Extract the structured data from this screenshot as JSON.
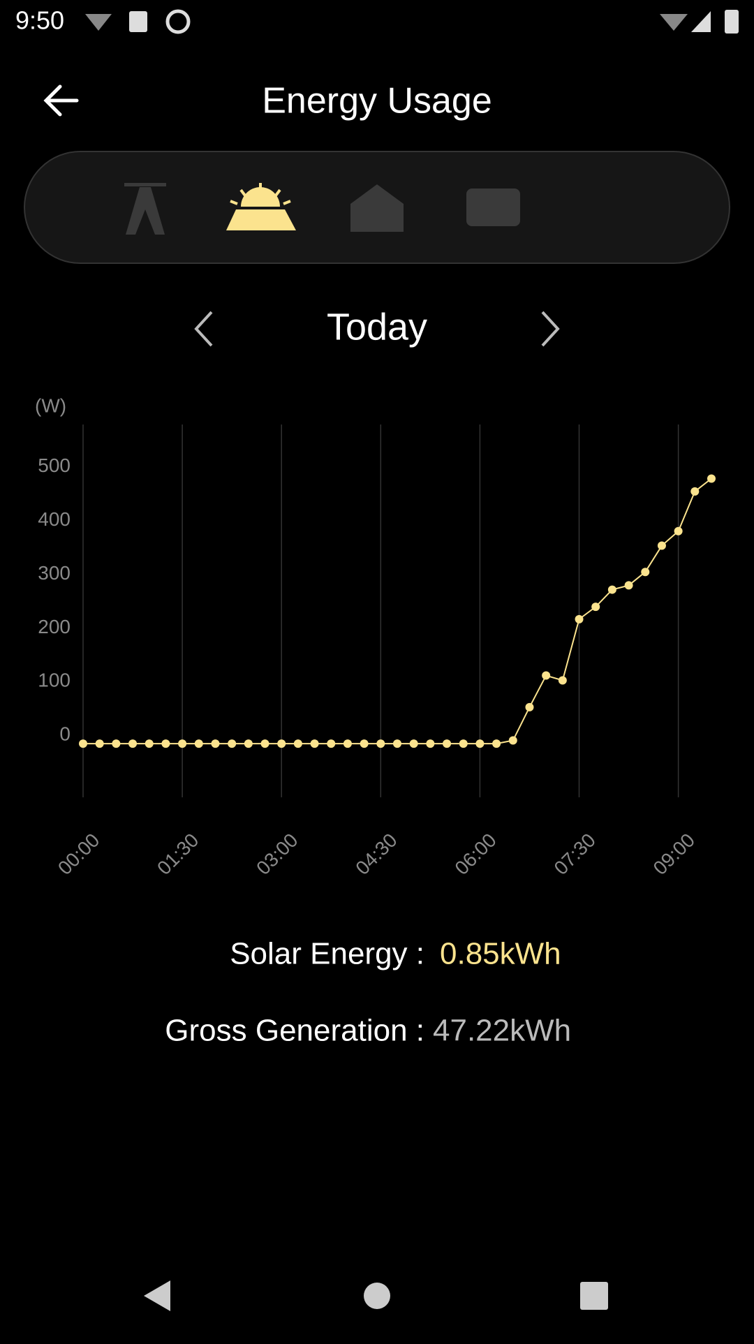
{
  "status_bar": {
    "time": "9:50"
  },
  "header": {
    "title": "Energy Usage"
  },
  "date_nav": {
    "label": "Today"
  },
  "chart_data": {
    "type": "line",
    "y_label": "(W)",
    "color": "#fbe38e",
    "grid": true,
    "x": [
      0,
      0.25,
      0.5,
      0.75,
      1,
      1.25,
      1.5,
      1.75,
      2,
      2.25,
      2.5,
      2.75,
      3,
      3.25,
      3.5,
      3.75,
      4,
      4.25,
      4.5,
      4.75,
      5,
      5.25,
      5.5,
      5.75,
      6,
      6.25,
      6.5,
      6.75,
      7,
      7.25,
      7.5,
      7.75,
      8,
      8.25,
      8.5,
      8.75,
      9,
      9.25,
      9.5
    ],
    "values": [
      0,
      0,
      0,
      0,
      0,
      0,
      0,
      0,
      0,
      0,
      0,
      0,
      0,
      0,
      0,
      0,
      0,
      0,
      0,
      0,
      0,
      0,
      0,
      0,
      0,
      0,
      6,
      68,
      127,
      118,
      232,
      255,
      287,
      295,
      320,
      369,
      396,
      470,
      494
    ],
    "xlim": [
      0,
      9.5
    ],
    "xticks": [
      {
        "value": 0,
        "label": "00:00"
      },
      {
        "value": 1.5,
        "label": "01:30"
      },
      {
        "value": 3,
        "label": "03:00"
      },
      {
        "value": 4.5,
        "label": "04:30"
      },
      {
        "value": 6,
        "label": "06:00"
      },
      {
        "value": 7.5,
        "label": "07:30"
      },
      {
        "value": 9,
        "label": "09:00"
      }
    ],
    "ylim": [
      -100,
      600
    ],
    "yticks": [
      0,
      100,
      200,
      300,
      400,
      500
    ]
  },
  "summary": {
    "solar_label": "Solar Energy :",
    "solar_value": "0.85kWh",
    "gross_label": "Gross Generation :",
    "gross_value": "47.22kWh"
  }
}
